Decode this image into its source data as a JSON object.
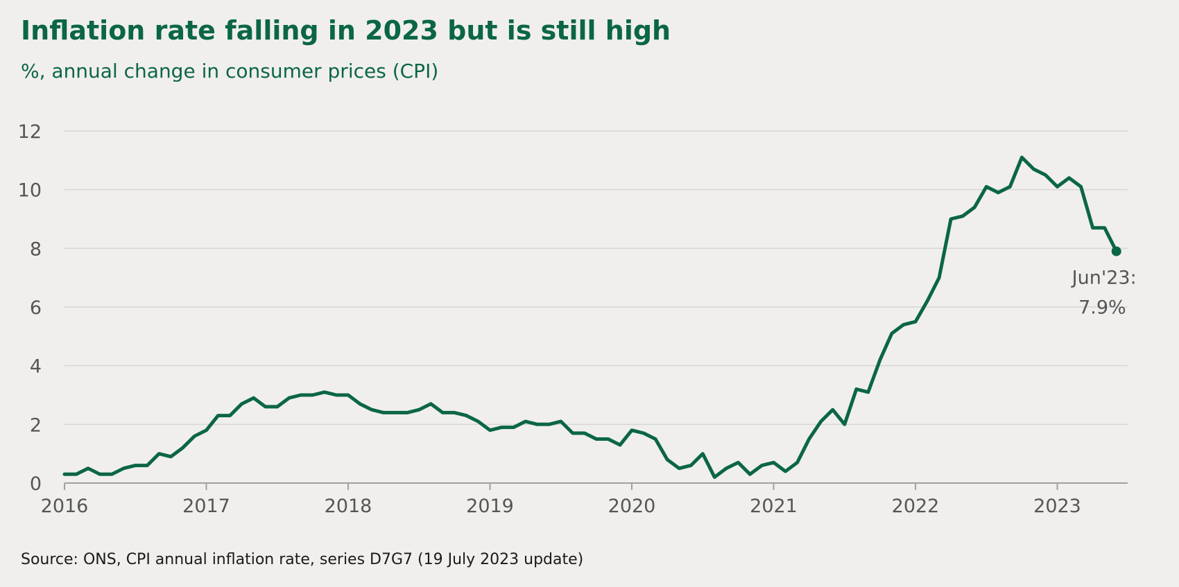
{
  "header": {
    "title": "Inflation rate falling in 2023 but is still high",
    "subtitle": "%, annual change in consumer prices (CPI)"
  },
  "footer": {
    "source": "Source: ONS, CPI annual inflation rate, series D7G7 (19 July 2023 update)"
  },
  "colors": {
    "background": "#f0efed",
    "line": "#0b6646",
    "text_primary": "#0b6646",
    "grid": "#d6d6d6",
    "axis": "#a0a0a0",
    "tick_text": "#555555"
  },
  "chart_data": {
    "type": "line",
    "title": "Inflation rate falling in 2023 but is still high",
    "subtitle": "%, annual change in consumer prices (CPI)",
    "xlabel": "",
    "ylabel": "",
    "x_start": "2016-01",
    "x_ticks": [
      "2016",
      "2017",
      "2018",
      "2019",
      "2020",
      "2021",
      "2022",
      "2023"
    ],
    "y_ticks": [
      "0",
      "2",
      "4",
      "6",
      "8",
      "10",
      "12"
    ],
    "ylim": [
      0,
      12
    ],
    "grid": "horizontal",
    "series": [
      {
        "values": [
          0.3,
          0.3,
          0.5,
          0.3,
          0.3,
          0.5,
          0.6,
          0.6,
          1.0,
          0.9,
          1.2,
          1.6,
          1.8,
          2.3,
          2.3,
          2.7,
          2.9,
          2.6,
          2.6,
          2.9,
          3.0,
          3.0,
          3.1,
          3.0,
          3.0,
          2.7,
          2.5,
          2.4,
          2.4,
          2.4,
          2.5,
          2.7,
          2.4,
          2.4,
          2.3,
          2.1,
          1.8,
          1.9,
          1.9,
          2.1,
          2.0,
          2.0,
          2.1,
          1.7,
          1.7,
          1.5,
          1.5,
          1.3,
          1.8,
          1.7,
          1.5,
          0.8,
          0.5,
          0.6,
          1.0,
          0.2,
          0.5,
          0.7,
          0.3,
          0.6,
          0.7,
          0.4,
          0.7,
          1.5,
          2.1,
          2.5,
          2.0,
          3.2,
          3.1,
          4.2,
          5.1,
          5.4,
          5.5,
          6.2,
          7.0,
          9.0,
          9.1,
          9.4,
          10.1,
          9.9,
          10.1,
          11.1,
          10.7,
          10.5,
          10.1,
          10.4,
          10.1,
          8.7,
          8.7,
          7.9
        ]
      }
    ],
    "annotation": {
      "line1": "Jun'23:",
      "line2": "7.9%"
    }
  }
}
